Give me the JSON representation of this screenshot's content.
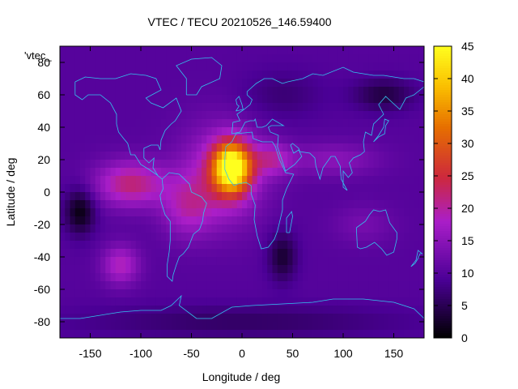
{
  "chart_data": {
    "type": "heatmap",
    "title": "VTEC / TECU 20210526_146.59400",
    "xlabel": "Longitude / deg",
    "ylabel": "Latitude / deg",
    "key_label": "'vtec_",
    "xlim": [
      -180,
      180
    ],
    "ylim": [
      -90,
      90
    ],
    "x_ticks": [
      -150,
      -100,
      -50,
      0,
      50,
      100,
      150
    ],
    "y_ticks": [
      -80,
      -60,
      -40,
      -20,
      0,
      20,
      40,
      60,
      80
    ],
    "colorbar": {
      "min": 0,
      "max": 45,
      "ticks": [
        0,
        5,
        10,
        15,
        20,
        25,
        30,
        35,
        40,
        45
      ]
    },
    "grid": false,
    "background_vtec": 10,
    "features": [
      {
        "lon": -10,
        "lat": 15,
        "value": 34,
        "spread_lon": 18,
        "spread_lat": 15
      },
      {
        "lon": -20,
        "lat": 10,
        "value": 10,
        "spread_lon": 40,
        "spread_lat": 30
      },
      {
        "lon": -110,
        "lat": 5,
        "value": 12,
        "spread_lon": 35,
        "spread_lat": 14
      },
      {
        "lon": -55,
        "lat": -10,
        "value": 7,
        "spread_lon": 25,
        "spread_lat": 18
      },
      {
        "lon": -120,
        "lat": -45,
        "value": 9,
        "spread_lon": 18,
        "spread_lat": 12
      },
      {
        "lon": 30,
        "lat": 20,
        "value": 8,
        "spread_lon": 20,
        "spread_lat": 10
      },
      {
        "lon": 90,
        "lat": 20,
        "value": 5,
        "spread_lon": 45,
        "spread_lat": 10
      },
      {
        "lon": -160,
        "lat": -12,
        "value": -9,
        "spread_lon": 15,
        "spread_lat": 14
      },
      {
        "lon": 40,
        "lat": -40,
        "value": -7,
        "spread_lon": 14,
        "spread_lat": 15
      },
      {
        "lon": 140,
        "lat": 60,
        "value": -6,
        "spread_lon": 30,
        "spread_lat": 10
      },
      {
        "lon": 40,
        "lat": 60,
        "value": -3,
        "spread_lon": 40,
        "spread_lat": 15
      },
      {
        "lon": 0,
        "lat": -80,
        "value": -4,
        "spread_lon": 160,
        "spread_lat": 10
      },
      {
        "lon": 120,
        "lat": -20,
        "value": 3,
        "spread_lon": 30,
        "spread_lat": 12
      }
    ]
  }
}
